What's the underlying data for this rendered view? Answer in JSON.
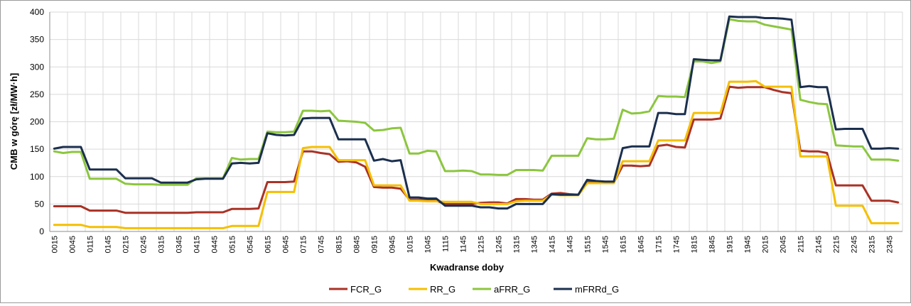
{
  "chart_data": {
    "type": "line",
    "title": "",
    "xlabel": "Kwadranse doby",
    "ylabel": "CMB w górę [zł/MW·h]",
    "ylim": [
      0,
      400
    ],
    "yticks": [
      0,
      50,
      100,
      150,
      200,
      250,
      300,
      350,
      400
    ],
    "grid": true,
    "legend_position": "bottom",
    "x_tick_labels": [
      "0015",
      "0045",
      "0115",
      "0145",
      "0215",
      "0245",
      "0315",
      "0345",
      "0415",
      "0445",
      "0515",
      "0545",
      "0615",
      "0645",
      "0715",
      "0745",
      "0815",
      "0845",
      "0915",
      "0945",
      "1015",
      "1045",
      "1115",
      "1145",
      "1215",
      "1245",
      "1315",
      "1345",
      "1415",
      "1445",
      "1515",
      "1545",
      "1615",
      "1645",
      "1715",
      "1745",
      "1815",
      "1845",
      "1915",
      "1945",
      "2015",
      "2045",
      "2115",
      "2145",
      "2215",
      "2245",
      "2315",
      "2345"
    ],
    "series": [
      {
        "name": "FCR_G",
        "color": "#A93226",
        "values": [
          46,
          46,
          46,
          46,
          38,
          38,
          38,
          38,
          34,
          34,
          34,
          34,
          34,
          34,
          34,
          34,
          35,
          35,
          35,
          35,
          41,
          41,
          41,
          42,
          90,
          90,
          90,
          91,
          146,
          146,
          143,
          141,
          127,
          128,
          126,
          118,
          81,
          80,
          80,
          78,
          58,
          58,
          58,
          56,
          50,
          50,
          50,
          50,
          52,
          53,
          53,
          51,
          59,
          59,
          58,
          58,
          69,
          70,
          68,
          67,
          90,
          90,
          89,
          89,
          120,
          120,
          119,
          120,
          156,
          158,
          154,
          153,
          204,
          204,
          204,
          206,
          264,
          262,
          263,
          263,
          263,
          258,
          254,
          252,
          147,
          146,
          146,
          143,
          84,
          84,
          84,
          84,
          56,
          56,
          56,
          53
        ]
      },
      {
        "name": "RR_G",
        "color": "#F5BF00",
        "values": [
          12,
          12,
          12,
          12,
          8,
          8,
          8,
          8,
          6,
          6,
          6,
          6,
          6,
          6,
          6,
          6,
          6,
          6,
          6,
          6,
          10,
          10,
          10,
          10,
          72,
          72,
          72,
          72,
          152,
          154,
          154,
          154,
          130,
          130,
          130,
          130,
          84,
          84,
          84,
          84,
          56,
          56,
          55,
          55,
          54,
          54,
          54,
          54,
          50,
          50,
          50,
          50,
          55,
          56,
          56,
          56,
          67,
          66,
          66,
          66,
          88,
          88,
          88,
          88,
          128,
          128,
          128,
          128,
          166,
          166,
          166,
          166,
          216,
          216,
          216,
          216,
          273,
          273,
          273,
          274,
          264,
          264,
          264,
          264,
          137,
          137,
          137,
          137,
          47,
          47,
          47,
          47,
          15,
          15,
          15,
          15
        ]
      },
      {
        "name": "aFRR_G",
        "color": "#8CC63F",
        "values": [
          146,
          143,
          145,
          145,
          96,
          96,
          96,
          96,
          87,
          86,
          86,
          86,
          85,
          85,
          85,
          85,
          97,
          97,
          97,
          97,
          134,
          131,
          132,
          132,
          182,
          181,
          181,
          182,
          220,
          220,
          219,
          220,
          202,
          201,
          200,
          198,
          184,
          185,
          188,
          189,
          142,
          142,
          147,
          146,
          110,
          110,
          111,
          110,
          104,
          104,
          103,
          103,
          112,
          112,
          112,
          111,
          138,
          138,
          138,
          138,
          170,
          168,
          168,
          169,
          222,
          215,
          216,
          219,
          247,
          246,
          246,
          245,
          310,
          310,
          307,
          310,
          387,
          384,
          383,
          383,
          377,
          374,
          371,
          368,
          240,
          236,
          233,
          232,
          157,
          156,
          155,
          155,
          131,
          131,
          131,
          129
        ]
      },
      {
        "name": "mFRRd_G",
        "color": "#1B2F4E",
        "values": [
          151,
          154,
          154,
          154,
          113,
          113,
          113,
          113,
          97,
          97,
          97,
          97,
          89,
          89,
          89,
          89,
          95,
          96,
          96,
          96,
          124,
          125,
          124,
          125,
          179,
          176,
          175,
          176,
          206,
          207,
          207,
          207,
          168,
          168,
          168,
          168,
          129,
          132,
          128,
          130,
          62,
          62,
          60,
          60,
          47,
          47,
          47,
          47,
          44,
          44,
          42,
          42,
          50,
          50,
          50,
          50,
          68,
          67,
          67,
          67,
          94,
          92,
          91,
          91,
          152,
          155,
          155,
          155,
          216,
          216,
          214,
          214,
          314,
          313,
          312,
          312,
          392,
          391,
          391,
          391,
          389,
          389,
          388,
          386,
          263,
          265,
          263,
          263,
          186,
          187,
          187,
          187,
          151,
          151,
          152,
          151
        ]
      }
    ]
  }
}
